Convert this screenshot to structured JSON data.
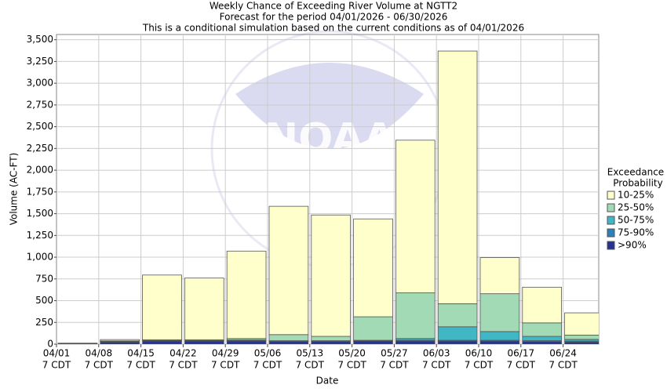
{
  "chart_data": {
    "type": "stacked_bar",
    "title": [
      "Weekly Chance of Exceeding River Volume at NGTT2",
      "Forecast for the period 04/01/2026 - 06/30/2026",
      "This is a conditional simulation based on the current conditions as of 04/01/2026"
    ],
    "x_label": "Date",
    "y_label": "Volume (AC-FT)",
    "watermark": "NOAA",
    "categories": [
      "04/01",
      "04/08",
      "04/15",
      "04/22",
      "04/29",
      "05/06",
      "05/13",
      "05/20",
      "05/27",
      "06/03",
      "06/10",
      "06/17",
      "06/24"
    ],
    "category_sublabel": "7 CDT",
    "legend_title": [
      "Exceedance",
      "Probability"
    ],
    "legend_position": "right",
    "grid": true,
    "ylim": [
      0,
      3560
    ],
    "yticks": [
      0,
      250,
      500,
      750,
      {
        "value": 1000,
        "label": "1,000"
      },
      {
        "value": 1250,
        "label": "1,250"
      },
      {
        "value": 1500,
        "label": "1,500"
      },
      {
        "value": 1750,
        "label": "1,750"
      },
      {
        "value": 2000,
        "label": "2,000"
      },
      {
        "value": 2250,
        "label": "2,250"
      },
      {
        "value": 2500,
        "label": "2,500"
      },
      {
        "value": 2750,
        "label": "2,750"
      },
      {
        "value": 3000,
        "label": "3,000"
      },
      {
        "value": 3250,
        "label": "3,250"
      },
      {
        "value": 3500,
        "label": "3,500"
      }
    ],
    "series": [
      {
        "name": ">90%",
        "color": "#253494",
        "values": [
          3,
          25,
          35,
          35,
          35,
          30,
          30,
          35,
          35,
          35,
          35,
          30,
          25
        ]
      },
      {
        "name": "75-90%",
        "color": "#2c7fb8",
        "values": [
          2,
          5,
          8,
          8,
          8,
          5,
          5,
          5,
          10,
          10,
          10,
          10,
          10
        ]
      },
      {
        "name": "50-75%",
        "color": "#41b6c4",
        "values": [
          2,
          3,
          2,
          2,
          5,
          5,
          5,
          5,
          20,
          155,
          100,
          50,
          20
        ]
      },
      {
        "name": "25-50%",
        "color": "#a1dab4",
        "values": [
          2,
          5,
          5,
          5,
          17,
          70,
          50,
          270,
          525,
          265,
          435,
          155,
          50
        ]
      },
      {
        "name": "10-25%",
        "color": "#ffffcc",
        "values": [
          3,
          15,
          745,
          710,
          1005,
          1475,
          1395,
          1125,
          1755,
          2905,
          415,
          410,
          255
        ]
      }
    ]
  }
}
